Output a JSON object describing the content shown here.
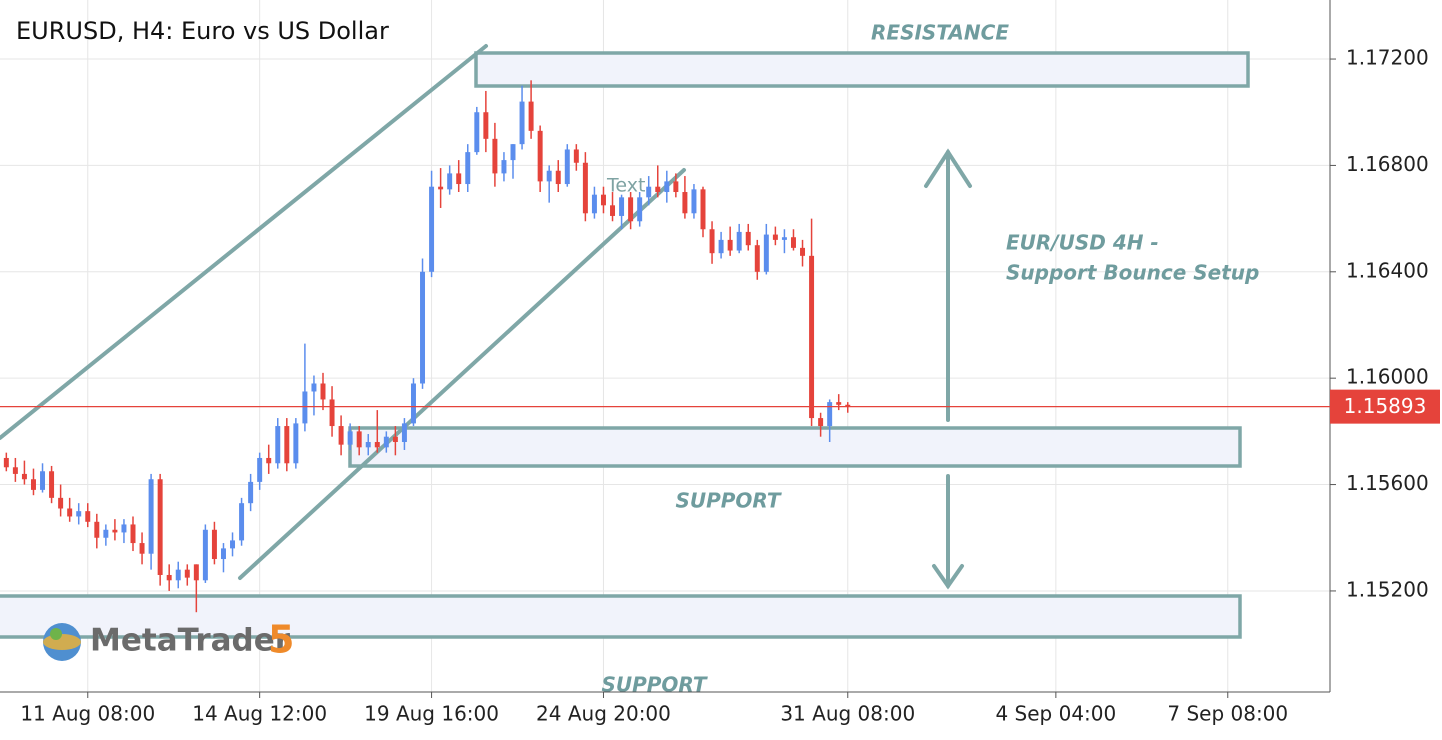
{
  "chart_data": {
    "type": "candlestick",
    "title": "EURUSD, H4: Euro vs US Dollar",
    "up_color": "#5b8ded",
    "down_color": "#e5433b",
    "grid": true,
    "ylim": [
      1.1482,
      1.17422
    ],
    "yticks": [
      {
        "value": 1.172,
        "label": "1.17200"
      },
      {
        "value": 1.168,
        "label": "1.16800"
      },
      {
        "value": 1.164,
        "label": "1.16400"
      },
      {
        "value": 1.16,
        "label": "1.16000"
      },
      {
        "value": 1.156,
        "label": "1.15600"
      },
      {
        "value": 1.152,
        "label": "1.15200"
      }
    ],
    "xlim": [
      -0.7,
      146.3
    ],
    "xticks": [
      {
        "value": 9,
        "label": "11 Aug 08:00"
      },
      {
        "value": 28,
        "label": "14 Aug 12:00"
      },
      {
        "value": 47,
        "label": "19 Aug 16:00"
      },
      {
        "value": 66,
        "label": "24 Aug 20:00"
      },
      {
        "value": 93,
        "label": "31 Aug 08:00"
      },
      {
        "value": 116,
        "label": "4 Sep 04:00"
      },
      {
        "value": 135,
        "label": "7 Sep 08:00"
      }
    ],
    "last_price": 1.15893,
    "last_price_color": "#e5433b",
    "candles": {
      "open": [
        1.157,
        1.15665,
        1.1564,
        1.1562,
        1.1558,
        1.1565,
        1.1555,
        1.1551,
        1.1548,
        1.155,
        1.1546,
        1.154,
        1.1543,
        1.1542,
        1.1545,
        1.1538,
        1.1534,
        1.1562,
        1.1526,
        1.1524,
        1.1528,
        1.153,
        1.1524,
        1.1543,
        1.1532,
        1.1536,
        1.1539,
        1.1553,
        1.1561,
        1.157,
        1.1568,
        1.1582,
        1.1568,
        1.1583,
        1.1595,
        1.1598,
        1.1592,
        1.1582,
        1.1575,
        1.158,
        1.1574,
        1.1576,
        1.1574,
        1.1578,
        1.1576,
        1.1583,
        1.1598,
        1.164,
        1.1672,
        1.1671,
        1.1677,
        1.1673,
        1.1685,
        1.17,
        1.169,
        1.1677,
        1.1682,
        1.1688,
        1.1704,
        1.1693,
        1.1674,
        1.1678,
        1.1673,
        1.1686,
        1.1681,
        1.1662,
        1.1669,
        1.1665,
        1.1661,
        1.1668,
        1.1659,
        1.1668,
        1.1672,
        1.167,
        1.1674,
        1.167,
        1.1662,
        1.1671,
        1.1656,
        1.1647,
        1.1652,
        1.1648,
        1.1655,
        1.165,
        1.164,
        1.1654,
        1.1652,
        1.1653,
        1.1649,
        1.1646,
        1.1585,
        1.1582,
        1.1591,
        1.159
      ],
      "high": [
        1.1572,
        1.157,
        1.1569,
        1.1566,
        1.1568,
        1.1567,
        1.156,
        1.1555,
        1.1553,
        1.1553,
        1.1549,
        1.1545,
        1.1547,
        1.1547,
        1.1548,
        1.1542,
        1.1564,
        1.1564,
        1.153,
        1.1531,
        1.153,
        1.153,
        1.1545,
        1.1546,
        1.1538,
        1.1542,
        1.1555,
        1.1564,
        1.1572,
        1.1575,
        1.1585,
        1.1585,
        1.1585,
        1.1613,
        1.1601,
        1.1602,
        1.1597,
        1.1586,
        1.1583,
        1.1582,
        1.1579,
        1.1588,
        1.158,
        1.1582,
        1.1585,
        1.16,
        1.1645,
        1.1678,
        1.1679,
        1.168,
        1.1682,
        1.1688,
        1.1702,
        1.1708,
        1.1696,
        1.1685,
        1.1688,
        1.171,
        1.1712,
        1.1695,
        1.168,
        1.1682,
        1.1688,
        1.1688,
        1.1685,
        1.1672,
        1.1672,
        1.167,
        1.1669,
        1.167,
        1.167,
        1.1676,
        1.168,
        1.1678,
        1.1677,
        1.1676,
        1.1673,
        1.1672,
        1.1659,
        1.1655,
        1.1657,
        1.1658,
        1.1658,
        1.1652,
        1.1658,
        1.1657,
        1.1656,
        1.1656,
        1.1652,
        1.166,
        1.1587,
        1.1592,
        1.1594,
        1.1591
      ],
      "low": [
        1.1565,
        1.1561,
        1.156,
        1.1556,
        1.1557,
        1.1553,
        1.1548,
        1.1546,
        1.1545,
        1.1544,
        1.1536,
        1.1537,
        1.1539,
        1.1538,
        1.1535,
        1.153,
        1.1528,
        1.1522,
        1.152,
        1.1521,
        1.1522,
        1.1512,
        1.1523,
        1.153,
        1.1527,
        1.1533,
        1.1537,
        1.155,
        1.1558,
        1.1564,
        1.1566,
        1.1565,
        1.1566,
        1.158,
        1.1586,
        1.1588,
        1.1578,
        1.1571,
        1.1573,
        1.1571,
        1.1571,
        1.1572,
        1.1572,
        1.1571,
        1.1573,
        1.1582,
        1.1596,
        1.1638,
        1.1664,
        1.1669,
        1.167,
        1.167,
        1.1684,
        1.1685,
        1.1672,
        1.1674,
        1.1675,
        1.1686,
        1.169,
        1.167,
        1.1666,
        1.167,
        1.1672,
        1.1678,
        1.1659,
        1.166,
        1.1662,
        1.1659,
        1.1656,
        1.1656,
        1.1657,
        1.1665,
        1.1668,
        1.1666,
        1.1668,
        1.166,
        1.166,
        1.1653,
        1.1643,
        1.1645,
        1.1646,
        1.1647,
        1.1648,
        1.1637,
        1.1639,
        1.165,
        1.1647,
        1.1648,
        1.1642,
        1.1582,
        1.1578,
        1.1576,
        1.1588,
        1.1587
      ],
      "close": [
        1.15665,
        1.1564,
        1.1562,
        1.1558,
        1.1565,
        1.1555,
        1.1551,
        1.1548,
        1.155,
        1.1546,
        1.154,
        1.1543,
        1.1542,
        1.1545,
        1.1538,
        1.1534,
        1.1562,
        1.1526,
        1.1524,
        1.1528,
        1.1525,
        1.1524,
        1.1543,
        1.1532,
        1.1536,
        1.1539,
        1.1553,
        1.1561,
        1.157,
        1.1568,
        1.1582,
        1.1568,
        1.1583,
        1.1595,
        1.1598,
        1.1592,
        1.1582,
        1.1575,
        1.158,
        1.1574,
        1.1576,
        1.1574,
        1.1578,
        1.1576,
        1.1583,
        1.1598,
        1.164,
        1.1672,
        1.1671,
        1.1677,
        1.1673,
        1.1685,
        1.17,
        1.169,
        1.1677,
        1.1682,
        1.1688,
        1.1704,
        1.1693,
        1.1674,
        1.1678,
        1.1673,
        1.1686,
        1.1681,
        1.1662,
        1.1669,
        1.1665,
        1.1661,
        1.1668,
        1.1659,
        1.1668,
        1.1672,
        1.167,
        1.1674,
        1.167,
        1.1662,
        1.1671,
        1.1656,
        1.1647,
        1.1652,
        1.1648,
        1.1655,
        1.165,
        1.164,
        1.1654,
        1.1652,
        1.1653,
        1.1649,
        1.1646,
        1.1585,
        1.1582,
        1.1591,
        1.159,
        1.15893
      ]
    },
    "annotations": {
      "resistance": "RESISTANCE",
      "support_upper": "SUPPORT",
      "support_lower": "SUPPORT",
      "text_tool": "Text",
      "setup_line1": "EUR/USD 4H -",
      "setup_line2": "Support Bounce Setup"
    },
    "watermark": {
      "name": "MetaTrader",
      "version": "5"
    }
  }
}
